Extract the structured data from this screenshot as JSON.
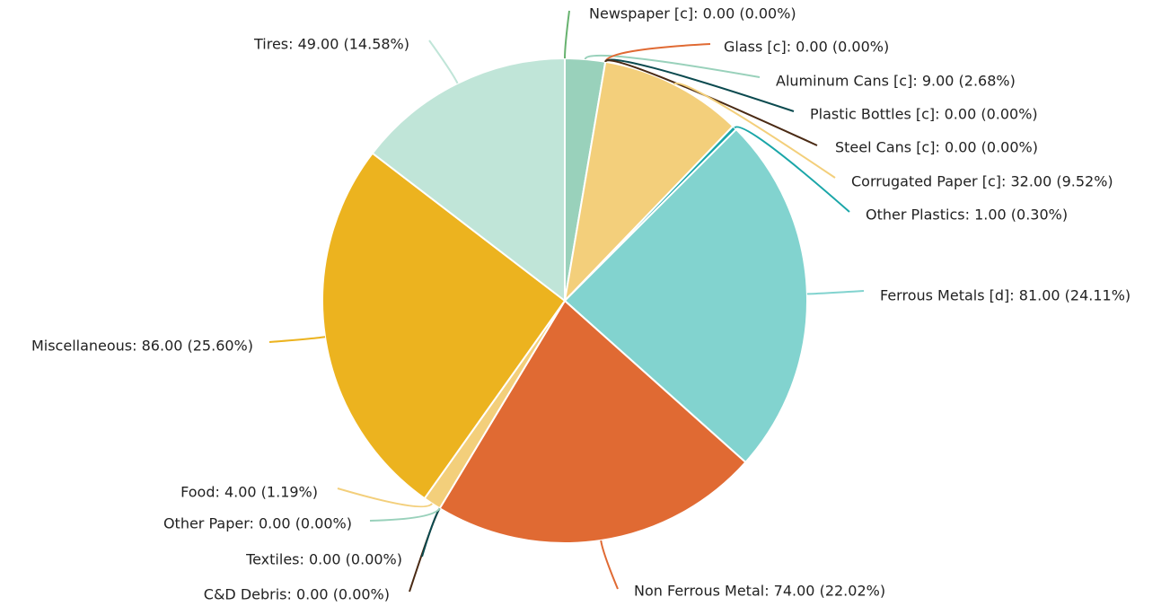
{
  "chart_data": {
    "type": "pie",
    "title": "",
    "start_angle_deg": 90,
    "direction": "clockwise",
    "series": [
      {
        "name": "Newspaper [c]",
        "value": 0.0,
        "label": "Newspaper [c]: 0.00 (0.00%)",
        "color": "#67b26f"
      },
      {
        "name": "Aluminum Cans [c]",
        "value": 9.0,
        "label": "Aluminum Cans [c]: 9.00 (2.68%)",
        "color": "#99d1bb"
      },
      {
        "name": "Glass [c]",
        "value": 0.0,
        "label": "Glass [c]: 0.00 (0.00%)",
        "color": "#e06a33"
      },
      {
        "name": "Plastic Bottles [c]",
        "value": 0.0,
        "label": "Plastic Bottles [c]: 0.00 (0.00%)",
        "color": "#0b4a4f"
      },
      {
        "name": "Steel Cans [c]",
        "value": 0.0,
        "label": "Steel Cans [c]: 0.00 (0.00%)",
        "color": "#4a2a14"
      },
      {
        "name": "Corrugated Paper [c]",
        "value": 32.0,
        "label": "Corrugated Paper [c]: 32.00 (9.52%)",
        "color": "#f3cf7b"
      },
      {
        "name": "Other Plastics",
        "value": 1.0,
        "label": "Other Plastics: 1.00 (0.30%)",
        "color": "#1aa6a8"
      },
      {
        "name": "Ferrous Metals [d]",
        "value": 81.0,
        "label": "Ferrous Metals [d]: 81.00 (24.11%)",
        "color": "#82d3cf"
      },
      {
        "name": "Non Ferrous Metal",
        "value": 74.0,
        "label": "Non Ferrous Metal: 74.00 (22.02%)",
        "color": "#e06a33"
      },
      {
        "name": "C&D Debris",
        "value": 0.0,
        "label": "C&D Debris: 0.00 (0.00%)",
        "color": "#4a2a14"
      },
      {
        "name": "Textiles",
        "value": 0.0,
        "label": "Textiles: 0.00 (0.00%)",
        "color": "#0b4a4f"
      },
      {
        "name": "Other Paper",
        "value": 0.0,
        "label": "Other Paper: 0.00 (0.00%)",
        "color": "#99d1bb"
      },
      {
        "name": "Food",
        "value": 4.0,
        "label": "Food: 4.00 (1.19%)",
        "color": "#f3cf7b"
      },
      {
        "name": "Miscellaneous",
        "value": 86.0,
        "label": "Miscellaneous: 86.00 (25.60%)",
        "color": "#ecb31f"
      },
      {
        "name": "Tires",
        "value": 49.0,
        "label": "Tires: 49.00 (14.58%)",
        "color": "#c0e5d8"
      }
    ]
  }
}
